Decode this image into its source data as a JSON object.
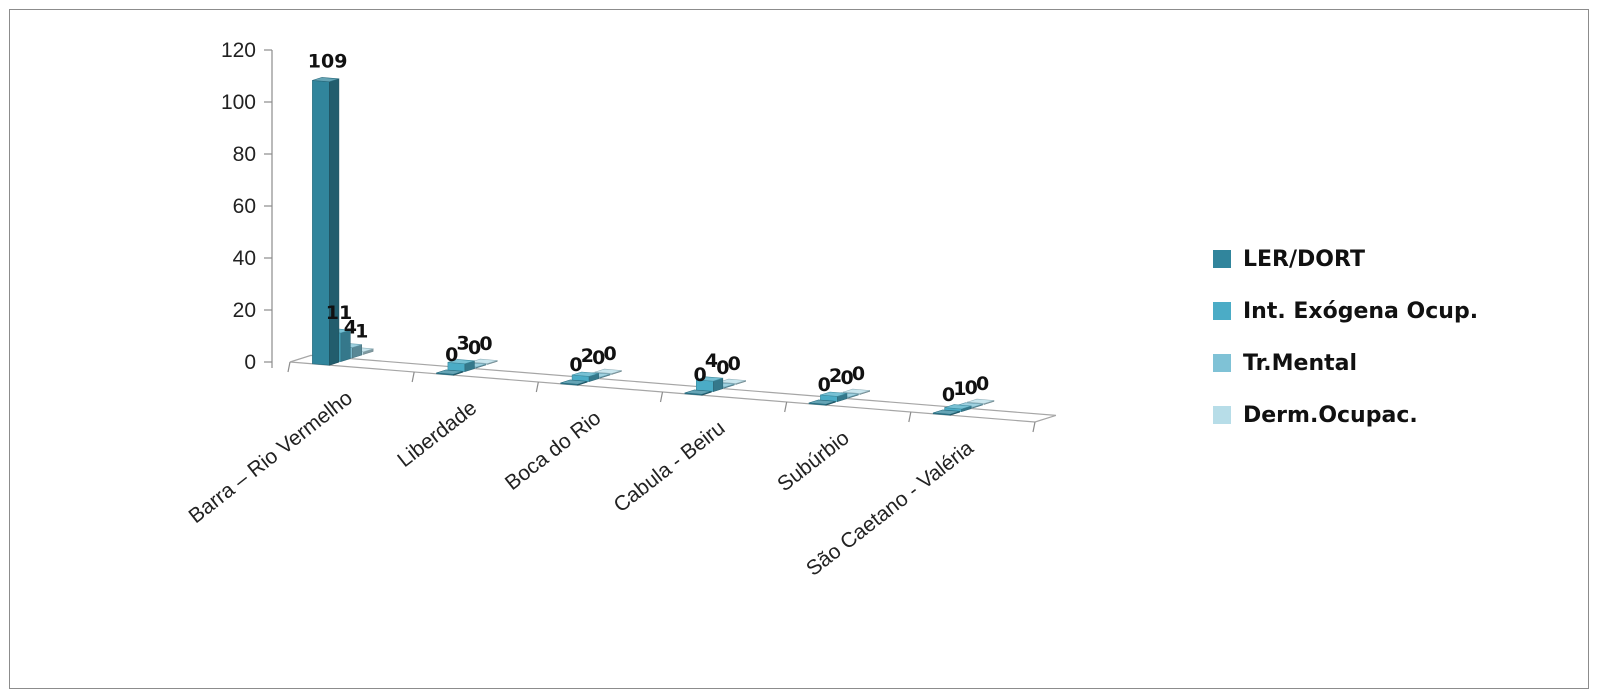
{
  "chart_data": {
    "type": "bar",
    "three_d": true,
    "categories": [
      "Barra – Rio Vermelho",
      "Liberdade",
      "Boca do Rio",
      "Cabula - Beiru",
      "Subúrbio",
      "São Caetano - Valéria"
    ],
    "series": [
      {
        "name": "LER/DORT",
        "color": "#31859c",
        "values": [
          109,
          0,
          0,
          0,
          0,
          0
        ]
      },
      {
        "name": "Int. Exógena Ocup.",
        "color": "#4bacc6",
        "values": [
          11,
          3,
          2,
          4,
          2,
          1
        ]
      },
      {
        "name": "Tr.Mental",
        "color": "#7fc2d6",
        "values": [
          4,
          0,
          0,
          0,
          0,
          0
        ]
      },
      {
        "name": "Derm.Ocupac.",
        "color": "#b7dde8",
        "values": [
          1,
          0,
          0,
          0,
          0,
          0
        ]
      }
    ],
    "y_ticks": [
      "0",
      "20",
      "40",
      "60",
      "80",
      "100",
      "120"
    ],
    "ylim": [
      0,
      120
    ],
    "legend_position": "right"
  }
}
